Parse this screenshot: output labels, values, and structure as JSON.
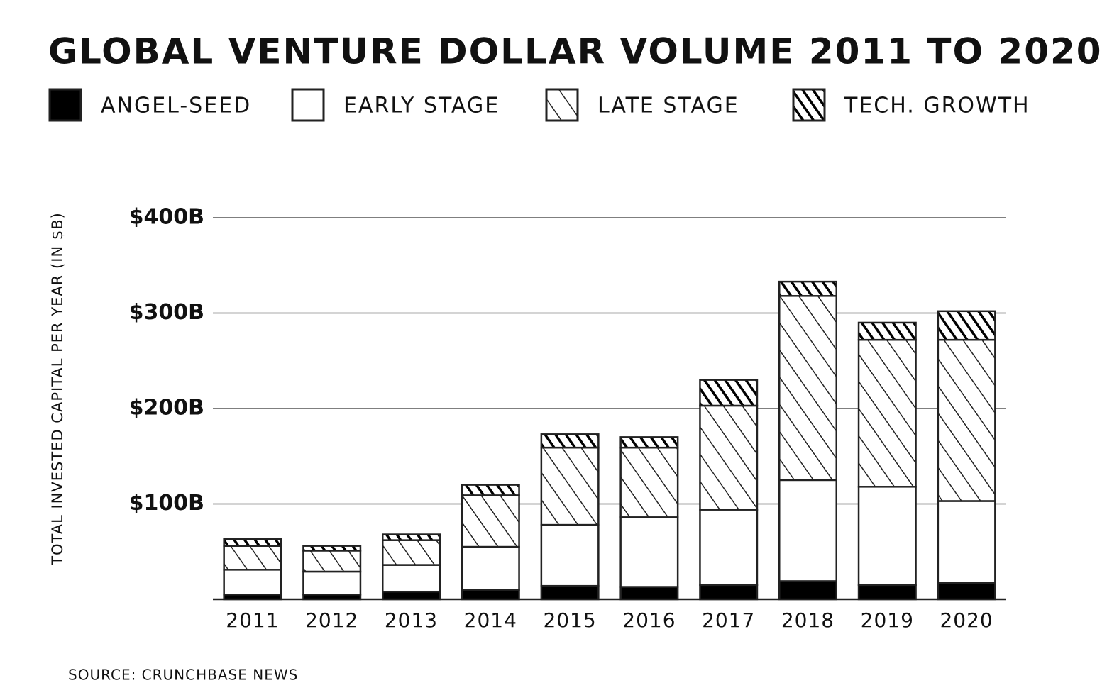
{
  "chart_data": {
    "type": "stacked-bar",
    "title": "GLOBAL VENTURE DOLLAR VOLUME 2011 TO 2020",
    "y_label": "TOTAL INVESTED CAPITAL PER YEAR (IN $B)",
    "source": "SOURCE: CRUNCHBASE NEWS",
    "categories": [
      "2011",
      "2012",
      "2013",
      "2014",
      "2015",
      "2016",
      "2017",
      "2018",
      "2019",
      "2020"
    ],
    "series": [
      {
        "name": "ANGEL-SEED",
        "color": "#000000",
        "pattern": "solid",
        "values": [
          5,
          5,
          8,
          10,
          14,
          13,
          15,
          19,
          15,
          17
        ]
      },
      {
        "name": "EARLY STAGE",
        "color": "#ffffff",
        "pattern": "solid",
        "values": [
          26,
          24,
          28,
          45,
          64,
          73,
          79,
          106,
          103,
          86
        ]
      },
      {
        "name": "LATE STAGE",
        "color": "#ffffff",
        "pattern": "sparse-hatch",
        "values": [
          25,
          22,
          26,
          54,
          81,
          73,
          109,
          193,
          154,
          169
        ]
      },
      {
        "name": "TECH. GROWTH",
        "color": "#000000",
        "pattern": "dense-hatch",
        "values": [
          7,
          5,
          6,
          11,
          14,
          11,
          27,
          15,
          18,
          30
        ]
      }
    ],
    "ylim": [
      0,
      400
    ],
    "yticks": [
      {
        "value": 100,
        "label": "$100B"
      },
      {
        "value": 200,
        "label": "$200B"
      },
      {
        "value": 300,
        "label": "$300B"
      },
      {
        "value": 400,
        "label": "$400B"
      }
    ],
    "grid": true
  }
}
